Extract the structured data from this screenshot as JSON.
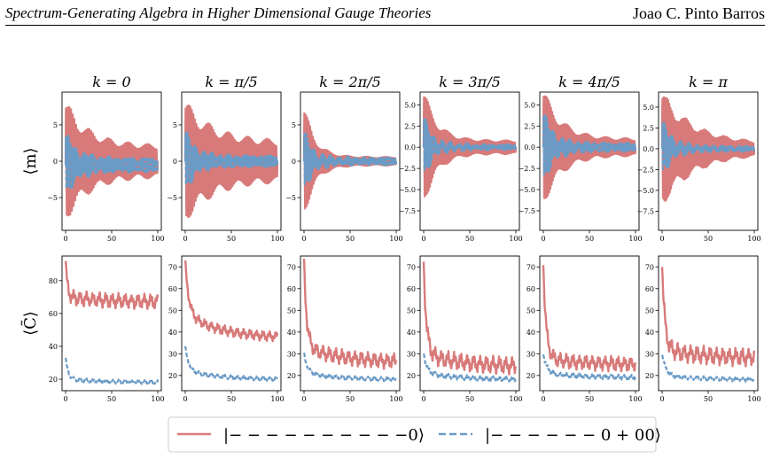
{
  "header": {
    "title": "Spectrum-Generating Algebra in Higher Dimensional Gauge Theories",
    "author": "Joao C. Pinto Barros"
  },
  "chart_data": {
    "type": "line",
    "column_titles": [
      "k = 0",
      "k = π/5",
      "k = 2π/5",
      "k = 3π/5",
      "k = 4π/5",
      "k = π"
    ],
    "row_labels": [
      "⟨m⟩",
      "⟨C̃⟩"
    ],
    "x": {
      "range": [
        0,
        100
      ],
      "ticks": [
        0,
        50,
        100
      ]
    },
    "series": [
      {
        "name": "|− − − − − − − − − −0⟩",
        "color": "#d87a7a",
        "style": "solid"
      },
      {
        "name": "|− − − − − − 0 + 00⟩",
        "color": "#6a9bc6",
        "style": "dashed"
      }
    ],
    "rows": [
      {
        "panels": [
          {
            "ylim": [
              -9.5,
              9.5
            ],
            "yticks": [
              -5,
              0,
              5
            ],
            "ytick_labels": [
              "−5",
              "0",
              "5"
            ],
            "red": {
              "amp0": 8.5,
              "amp_inf": 2.2,
              "decay": 25,
              "offset": 0
            },
            "blue": {
              "amp0": 4.5,
              "amp_inf": 1.0,
              "decay": 12,
              "offset": -0.5
            }
          },
          {
            "ylim": [
              -9.5,
              9.5
            ],
            "yticks": [
              -5,
              0,
              5
            ],
            "ytick_labels": [
              "−5",
              "0",
              "5"
            ],
            "red": {
              "amp0": 8.5,
              "amp_inf": 2.8,
              "decay": 30,
              "offset": 0
            },
            "blue": {
              "amp0": 4.5,
              "amp_inf": 0.8,
              "decay": 10,
              "offset": 0
            }
          },
          {
            "ylim": [
              -9.5,
              9.5
            ],
            "yticks": [
              -5,
              0,
              5
            ],
            "ytick_labels": [
              "−5",
              "0",
              "5"
            ],
            "red": {
              "amp0": 8,
              "amp_inf": 0.6,
              "decay": 12,
              "offset": 0
            },
            "blue": {
              "amp0": 4.5,
              "amp_inf": 0.5,
              "decay": 8,
              "offset": 0
            }
          },
          {
            "ylim": [
              -9.8,
              6.5
            ],
            "yticks": [
              -7.5,
              -5.0,
              -2.5,
              0.0,
              2.5,
              5.0
            ],
            "ytick_labels": [
              "−7.5",
              "−5.0",
              "−2.5",
              "0.0",
              "2.5",
              "5.0"
            ],
            "red": {
              "amp0": 7,
              "amp_inf": 0.8,
              "decay": 15,
              "offset": 0
            },
            "blue": {
              "amp0": 4,
              "amp_inf": 0.3,
              "decay": 8,
              "offset": 0
            }
          },
          {
            "ylim": [
              -9.8,
              6.5
            ],
            "yticks": [
              -7.5,
              -5.0,
              -2.5,
              0.0,
              2.5,
              5.0
            ],
            "ytick_labels": [
              "−7.5",
              "−5.0",
              "−2.5",
              "0.0",
              "2.5",
              "5.0"
            ],
            "red": {
              "amp0": 7,
              "amp_inf": 1.0,
              "decay": 20,
              "offset": 0
            },
            "blue": {
              "amp0": 4.5,
              "amp_inf": 0.5,
              "decay": 10,
              "offset": 0
            }
          },
          {
            "ylim": [
              -9.8,
              6.8
            ],
            "yticks": [
              -7.5,
              -5.0,
              -2.5,
              0.0,
              2.5,
              5.0
            ],
            "ytick_labels": [
              "−7.5",
              "−5.0",
              "−2.5",
              "0.0",
              "2.5",
              "5.0"
            ],
            "red": {
              "amp0": 7,
              "amp_inf": 0.6,
              "decay": 35,
              "offset": 0
            },
            "blue": {
              "amp0": 3.5,
              "amp_inf": 0.3,
              "decay": 10,
              "offset": 0
            }
          }
        ]
      },
      {
        "panels": [
          {
            "ylim": [
              13,
              95
            ],
            "yticks": [
              20,
              40,
              60,
              80
            ],
            "ytick_labels": [
              "20",
              "40",
              "60",
              "80"
            ],
            "red": {
              "start": 92,
              "plateau": 70,
              "end": 67,
              "decay": 2,
              "wiggle": 4
            },
            "blue": {
              "start": 33,
              "plateau": 20,
              "end": 18,
              "decay": 3,
              "wiggle": 1.0
            }
          },
          {
            "ylim": [
              13,
              75
            ],
            "yticks": [
              20,
              30,
              40,
              50,
              60,
              70
            ],
            "ytick_labels": [
              "20",
              "30",
              "40",
              "50",
              "60",
              "70"
            ],
            "red": {
              "start": 72,
              "plateau": 48,
              "end": 37,
              "decay": 4,
              "wiggle": 2.0
            },
            "blue": {
              "start": 33,
              "plateau": 22,
              "end": 18,
              "decay": 4,
              "wiggle": 0.8
            }
          },
          {
            "ylim": [
              13,
              75
            ],
            "yticks": [
              20,
              30,
              40,
              50,
              60,
              70
            ],
            "ytick_labels": [
              "20",
              "30",
              "40",
              "50",
              "60",
              "70"
            ],
            "red": {
              "start": 72,
              "plateau": 33,
              "end": 26,
              "decay": 3,
              "wiggle": 3.0
            },
            "blue": {
              "start": 30,
              "plateau": 21,
              "end": 18,
              "decay": 4,
              "wiggle": 0.8
            }
          },
          {
            "ylim": [
              13,
              75
            ],
            "yticks": [
              20,
              30,
              40,
              50,
              60,
              70
            ],
            "ytick_labels": [
              "20",
              "30",
              "40",
              "50",
              "60",
              "70"
            ],
            "red": {
              "start": 72,
              "plateau": 30,
              "end": 24,
              "decay": 3,
              "wiggle": 3.5
            },
            "blue": {
              "start": 30,
              "plateau": 21,
              "end": 18,
              "decay": 4,
              "wiggle": 1.0
            }
          },
          {
            "ylim": [
              13,
              75
            ],
            "yticks": [
              20,
              30,
              40,
              50,
              60,
              70
            ],
            "ytick_labels": [
              "20",
              "30",
              "40",
              "50",
              "60",
              "70"
            ],
            "red": {
              "start": 72,
              "plateau": 28,
              "end": 25,
              "decay": 3,
              "wiggle": 3.0
            },
            "blue": {
              "start": 30,
              "plateau": 21,
              "end": 19,
              "decay": 4,
              "wiggle": 1.0
            }
          },
          {
            "ylim": [
              13,
              75
            ],
            "yticks": [
              20,
              30,
              40,
              50,
              60,
              70
            ],
            "ytick_labels": [
              "20",
              "30",
              "40",
              "50",
              "60",
              "70"
            ],
            "red": {
              "start": 72,
              "plateau": 32,
              "end": 28,
              "decay": 3,
              "wiggle": 3.5
            },
            "blue": {
              "start": 30,
              "plateau": 20,
              "end": 18,
              "decay": 4,
              "wiggle": 0.8
            }
          }
        ]
      }
    ]
  }
}
